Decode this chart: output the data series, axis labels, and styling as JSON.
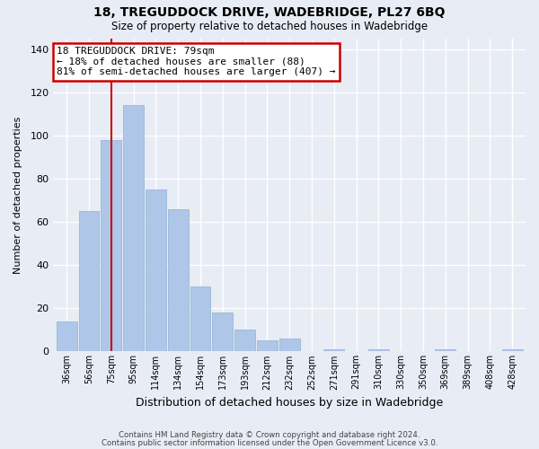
{
  "title": "18, TREGUDDOCK DRIVE, WADEBRIDGE, PL27 6BQ",
  "subtitle": "Size of property relative to detached houses in Wadebridge",
  "xlabel": "Distribution of detached houses by size in Wadebridge",
  "ylabel": "Number of detached properties",
  "bar_labels": [
    "36sqm",
    "56sqm",
    "75sqm",
    "95sqm",
    "114sqm",
    "134sqm",
    "154sqm",
    "173sqm",
    "193sqm",
    "212sqm",
    "232sqm",
    "252sqm",
    "271sqm",
    "291sqm",
    "310sqm",
    "330sqm",
    "350sqm",
    "369sqm",
    "389sqm",
    "408sqm",
    "428sqm"
  ],
  "bar_heights": [
    14,
    65,
    98,
    114,
    75,
    66,
    30,
    18,
    10,
    5,
    6,
    0,
    1,
    0,
    1,
    0,
    0,
    1,
    0,
    0,
    1
  ],
  "bar_color": "#aec6e8",
  "bar_edge_color": "#9ab8d8",
  "vline_x": 2,
  "vline_color": "#cc0000",
  "ylim": [
    0,
    145
  ],
  "yticks": [
    0,
    20,
    40,
    60,
    80,
    100,
    120,
    140
  ],
  "annotation_title": "18 TREGUDDOCK DRIVE: 79sqm",
  "annotation_line1": "← 18% of detached houses are smaller (88)",
  "annotation_line2": "81% of semi-detached houses are larger (407) →",
  "annotation_box_color": "#ffffff",
  "annotation_box_edge": "#cc0000",
  "footer_line1": "Contains HM Land Registry data © Crown copyright and database right 2024.",
  "footer_line2": "Contains public sector information licensed under the Open Government Licence v3.0.",
  "background_color": "#e8ecf5",
  "grid_color": "#ffffff"
}
